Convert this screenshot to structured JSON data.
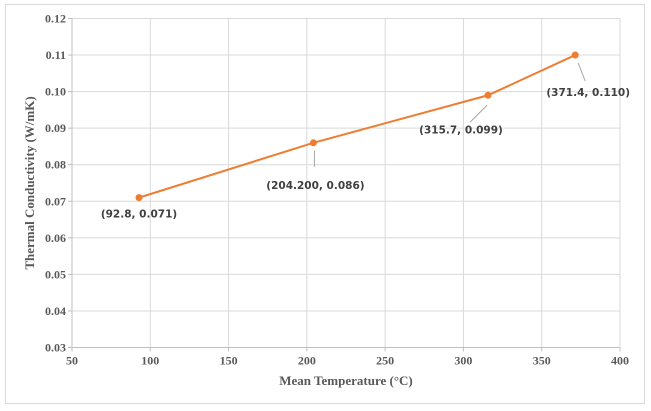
{
  "chart_data": {
    "type": "line",
    "title": "",
    "xlabel": "Mean Temperature (°C)",
    "ylabel": "Thermal Conductivity (W/mK)",
    "xlim": [
      50,
      400
    ],
    "ylim": [
      0.03,
      0.12
    ],
    "xticks": [
      50,
      100,
      150,
      200,
      250,
      300,
      350,
      400
    ],
    "yticks": [
      "0.03",
      "0.04",
      "0.05",
      "0.06",
      "0.07",
      "0.08",
      "0.09",
      "0.10",
      "0.11",
      "0.12"
    ],
    "grid": true,
    "legend": "none",
    "series": [
      {
        "name": "Thermal Conductivity",
        "color": "#ed7d31",
        "x": [
          92.8,
          204.2,
          315.7,
          371.4
        ],
        "y": [
          0.071,
          0.086,
          0.099,
          0.11
        ],
        "labels": [
          "(92.8, 0.071)",
          "(204.200, 0.086)",
          "(315.7, 0.099)",
          "(371.4, 0.110)"
        ]
      }
    ]
  }
}
